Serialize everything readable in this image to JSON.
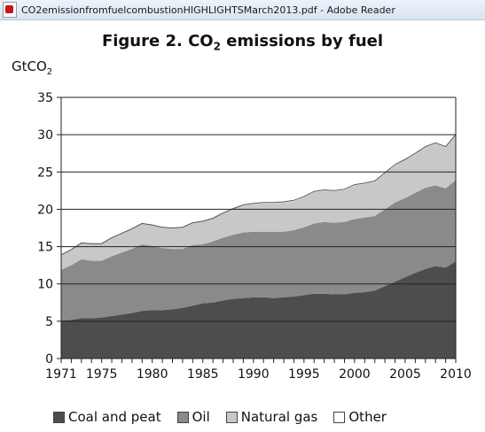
{
  "window": {
    "title": "CO2emissionfromfuelcombustionHIGHLIGHTSMarch2013.pdf - Adobe Reader",
    "icon": "pdf-icon"
  },
  "chart_data": {
    "type": "area",
    "title": "Figure 2. CO2 emissions by fuel",
    "title_parts": {
      "prefix": "Figure 2. CO",
      "sub": "2",
      "suffix": " emissions by fuel"
    },
    "ylabel": "GtCO2",
    "ylabel_parts": {
      "main": "GtCO",
      "sub": "2"
    },
    "xlabel": "",
    "stacked": true,
    "ylim": [
      0,
      35
    ],
    "xlim": [
      1971,
      2010
    ],
    "yticks": [
      0,
      5,
      10,
      15,
      20,
      25,
      30,
      35
    ],
    "xticks": [
      1971,
      1975,
      1980,
      1985,
      1990,
      1995,
      2000,
      2005,
      2010
    ],
    "grid": "horizontal",
    "legend_position": "bottom",
    "x": [
      1971,
      1972,
      1973,
      1974,
      1975,
      1976,
      1977,
      1978,
      1979,
      1980,
      1981,
      1982,
      1983,
      1984,
      1985,
      1986,
      1987,
      1988,
      1989,
      1990,
      1991,
      1992,
      1993,
      1994,
      1995,
      1996,
      1997,
      1998,
      1999,
      2000,
      2001,
      2002,
      2003,
      2004,
      2005,
      2006,
      2007,
      2008,
      2009,
      2010
    ],
    "series": [
      {
        "name": "Coal and peat",
        "color": "#4d4d4d",
        "values": [
          5.1,
          5.2,
          5.4,
          5.4,
          5.5,
          5.7,
          5.9,
          6.1,
          6.4,
          6.5,
          6.5,
          6.6,
          6.8,
          7.1,
          7.4,
          7.5,
          7.8,
          8.0,
          8.1,
          8.2,
          8.2,
          8.1,
          8.2,
          8.3,
          8.5,
          8.7,
          8.7,
          8.6,
          8.6,
          8.8,
          8.9,
          9.1,
          9.7,
          10.3,
          10.9,
          11.5,
          12.0,
          12.4,
          12.2,
          13.0
        ]
      },
      {
        "name": "Oil",
        "color": "#8a8a8a",
        "values": [
          6.8,
          7.3,
          7.9,
          7.7,
          7.6,
          8.0,
          8.3,
          8.6,
          8.9,
          8.6,
          8.3,
          8.1,
          7.9,
          8.1,
          7.9,
          8.2,
          8.4,
          8.6,
          8.8,
          8.8,
          8.8,
          8.9,
          8.8,
          8.9,
          9.1,
          9.4,
          9.6,
          9.6,
          9.7,
          9.9,
          10.0,
          10.0,
          10.3,
          10.6,
          10.6,
          10.7,
          10.9,
          10.8,
          10.6,
          10.9
        ]
      },
      {
        "name": "Natural gas",
        "color": "#c8c8c8",
        "values": [
          2.0,
          2.1,
          2.2,
          2.3,
          2.3,
          2.5,
          2.6,
          2.7,
          2.8,
          2.8,
          2.8,
          2.8,
          2.9,
          3.0,
          3.1,
          3.1,
          3.3,
          3.5,
          3.6,
          3.7,
          3.8,
          3.8,
          3.9,
          3.9,
          4.0,
          4.2,
          4.2,
          4.2,
          4.3,
          4.5,
          4.5,
          4.6,
          4.8,
          5.0,
          5.1,
          5.2,
          5.4,
          5.6,
          5.5,
          6.0
        ]
      },
      {
        "name": "Other",
        "color": "#ffffff",
        "values": [
          0.0,
          0.0,
          0.0,
          0.0,
          0.0,
          0.0,
          0.0,
          0.0,
          0.0,
          0.0,
          0.0,
          0.0,
          0.0,
          0.0,
          0.0,
          0.0,
          0.0,
          0.0,
          0.1,
          0.1,
          0.1,
          0.1,
          0.1,
          0.1,
          0.1,
          0.1,
          0.1,
          0.1,
          0.1,
          0.1,
          0.1,
          0.1,
          0.1,
          0.1,
          0.1,
          0.1,
          0.1,
          0.1,
          0.1,
          0.1
        ]
      }
    ]
  }
}
